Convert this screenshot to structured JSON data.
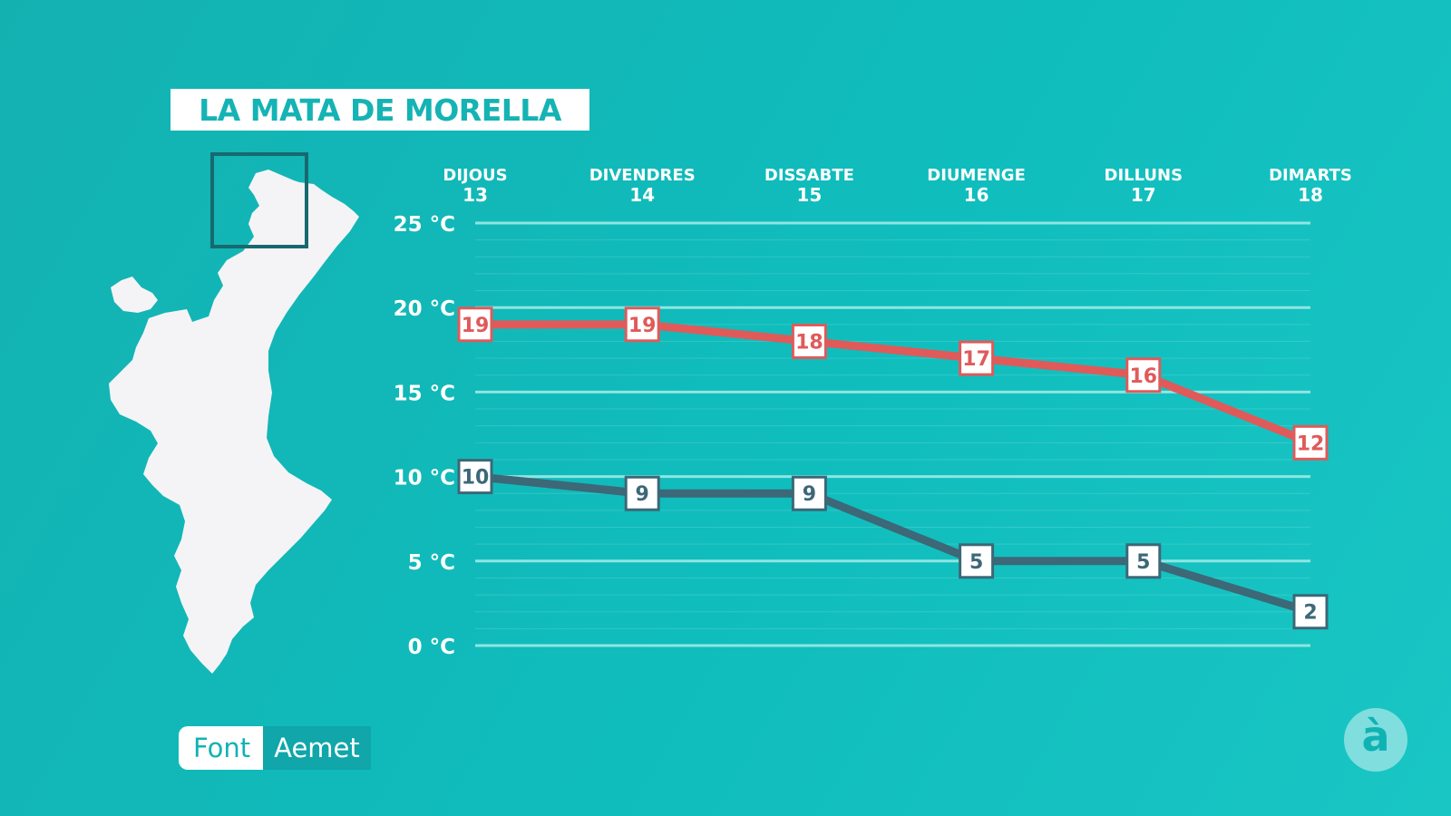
{
  "location_title": "LA MATA DE MORELLA",
  "source": {
    "label": "Font",
    "value": "Aemet"
  },
  "logo": {
    "glyph": "à"
  },
  "colors": {
    "background": "#12b6b6",
    "max_line": "#e05a5a",
    "min_line": "#3c6877",
    "grid": "#8ee6e2",
    "text": "#ffffff"
  },
  "chart_data": {
    "type": "line",
    "categories": [
      {
        "day": "DIJOUS",
        "date": "13"
      },
      {
        "day": "DIVENDRES",
        "date": "14"
      },
      {
        "day": "DISSABTE",
        "date": "15"
      },
      {
        "day": "DIUMENGE",
        "date": "16"
      },
      {
        "day": "DILLUNS",
        "date": "17"
      },
      {
        "day": "DIMARTS",
        "date": "18"
      }
    ],
    "series": [
      {
        "values": [
          19,
          19,
          18,
          17,
          16,
          12
        ],
        "color": "#e05a5a"
      },
      {
        "values": [
          10,
          9,
          9,
          5,
          5,
          2
        ],
        "color": "#3c6877"
      }
    ],
    "yticks": [
      {
        "value": 0,
        "label": "0 °C"
      },
      {
        "value": 5,
        "label": "5 °C"
      },
      {
        "value": 10,
        "label": "10 °C"
      },
      {
        "value": 15,
        "label": "15 °C"
      },
      {
        "value": 20,
        "label": "20 °C"
      },
      {
        "value": 25,
        "label": "25 °C"
      }
    ],
    "ylim": [
      0,
      25
    ],
    "grid": true,
    "legend": "none"
  }
}
